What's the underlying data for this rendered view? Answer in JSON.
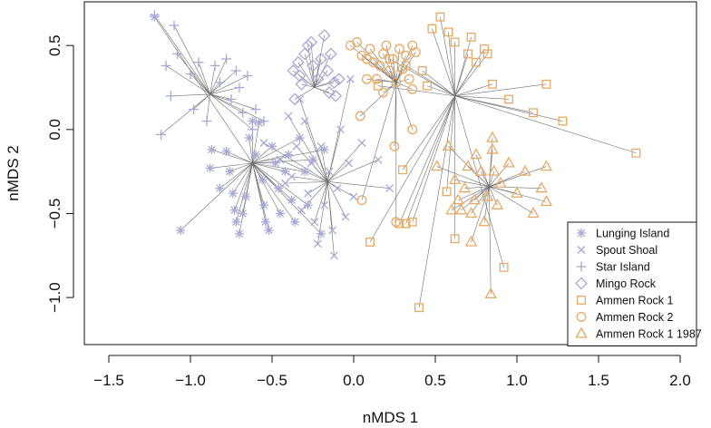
{
  "chart_data": {
    "type": "scatter",
    "title": "",
    "xlabel": "nMDS 1",
    "ylabel": "nMDS 2",
    "xlim": [
      -1.65,
      2.1
    ],
    "ylim": [
      -1.28,
      0.76
    ],
    "xticks": [
      -1.5,
      -1.0,
      -0.5,
      0.0,
      0.5,
      1.0,
      1.5,
      2.0
    ],
    "yticks": [
      -1.0,
      -0.5,
      0.0,
      0.5
    ],
    "xtick_labels": [
      "−1.5",
      "−1.0",
      "−0.5",
      "0.0",
      "0.5",
      "1.0",
      "1.5",
      "2.0"
    ],
    "ytick_labels": [
      "−1.0",
      "−0.5",
      "0.0",
      "0.5"
    ],
    "grid": false,
    "legend_position": "bottom-right",
    "spiders": true,
    "series": [
      {
        "name": "Lunging Island",
        "marker": "asterisk",
        "color": "#a9a9d6",
        "centroid": [
          -0.62,
          -0.2
        ],
        "points": [
          [
            -1.22,
            0.67
          ],
          [
            -0.87,
            -0.12
          ],
          [
            -0.88,
            -0.23
          ],
          [
            -0.82,
            -0.35
          ],
          [
            -1.06,
            -0.6
          ],
          [
            -0.78,
            -0.13
          ],
          [
            -0.76,
            -0.25
          ],
          [
            -0.74,
            -0.38
          ],
          [
            -0.73,
            -0.48
          ],
          [
            -0.72,
            -0.55
          ],
          [
            -0.7,
            -0.62
          ],
          [
            -0.68,
            -0.5
          ],
          [
            -0.66,
            -0.4
          ],
          [
            -0.64,
            -0.05
          ],
          [
            -0.62,
            0.05
          ],
          [
            -0.6,
            -0.15
          ],
          [
            -0.58,
            0.04
          ],
          [
            -0.56,
            -0.3
          ],
          [
            -0.55,
            -0.45
          ],
          [
            -0.54,
            -0.55
          ],
          [
            -0.52,
            -0.6
          ],
          [
            -0.5,
            -0.1
          ],
          [
            -0.48,
            -0.2
          ],
          [
            -0.46,
            -0.35
          ],
          [
            -0.45,
            -0.5
          ],
          [
            -0.42,
            -0.25
          ],
          [
            -0.4,
            -0.15
          ],
          [
            -0.38,
            -0.42
          ],
          [
            -0.36,
            -0.55
          ],
          [
            -0.33,
            -0.05
          ],
          [
            -0.3,
            -0.25
          ],
          [
            -0.28,
            -0.45
          ],
          [
            -0.25,
            -0.18
          ],
          [
            -0.2,
            -0.62
          ],
          [
            -0.18,
            -0.12
          ]
        ]
      },
      {
        "name": "Spout Shoal",
        "marker": "cross",
        "color": "#a9a9d6",
        "centroid": [
          -0.16,
          -0.31
        ],
        "points": [
          [
            -0.55,
            -0.08
          ],
          [
            -0.45,
            -0.18
          ],
          [
            -0.42,
            -0.32
          ],
          [
            -0.38,
            -0.28
          ],
          [
            -0.35,
            -0.1
          ],
          [
            -0.32,
            -0.48
          ],
          [
            -0.3,
            0.05
          ],
          [
            -0.28,
            -0.38
          ],
          [
            -0.26,
            -0.2
          ],
          [
            -0.24,
            -0.55
          ],
          [
            -0.22,
            -0.68
          ],
          [
            -0.2,
            -0.1
          ],
          [
            -0.18,
            -0.45
          ],
          [
            -0.15,
            -0.25
          ],
          [
            -0.13,
            -0.6
          ],
          [
            -0.1,
            -0.35
          ],
          [
            -0.08,
            0.0
          ],
          [
            -0.05,
            -0.52
          ],
          [
            -0.03,
            -0.2
          ],
          [
            0.0,
            -0.4
          ],
          [
            -0.02,
            0.3
          ],
          [
            0.15,
            -0.18
          ],
          [
            0.22,
            -0.35
          ],
          [
            0.05,
            -0.08
          ],
          [
            -0.33,
            0.18
          ],
          [
            -0.4,
            0.08
          ],
          [
            -0.12,
            -0.75
          ]
        ]
      },
      {
        "name": "Star Island",
        "marker": "plus",
        "color": "#a9a9d6",
        "centroid": [
          -0.88,
          0.21
        ],
        "points": [
          [
            -1.22,
            0.68
          ],
          [
            -1.1,
            0.62
          ],
          [
            -1.15,
            0.38
          ],
          [
            -1.08,
            0.45
          ],
          [
            -1.12,
            0.2
          ],
          [
            -1.0,
            0.33
          ],
          [
            -0.98,
            0.12
          ],
          [
            -0.95,
            0.4
          ],
          [
            -0.9,
            0.05
          ],
          [
            -0.85,
            0.38
          ],
          [
            -0.82,
            0.28
          ],
          [
            -0.78,
            0.42
          ],
          [
            -0.75,
            0.18
          ],
          [
            -0.72,
            0.35
          ],
          [
            -0.7,
            0.25
          ],
          [
            -0.68,
            0.1
          ],
          [
            -0.65,
            0.32
          ],
          [
            -0.62,
            0.0
          ],
          [
            -1.18,
            -0.03
          ],
          [
            -0.55,
            0.05
          ],
          [
            -0.6,
            0.12
          ]
        ]
      },
      {
        "name": "Mingo Rock",
        "marker": "diamond",
        "color": "#a9a9d6",
        "centroid": [
          -0.24,
          0.25
        ],
        "points": [
          [
            -0.34,
            0.4
          ],
          [
            -0.33,
            0.32
          ],
          [
            -0.3,
            0.45
          ],
          [
            -0.28,
            0.5
          ],
          [
            -0.26,
            0.52
          ],
          [
            -0.25,
            0.38
          ],
          [
            -0.22,
            0.3
          ],
          [
            -0.2,
            0.42
          ],
          [
            -0.18,
            0.56
          ],
          [
            -0.16,
            0.35
          ],
          [
            -0.15,
            0.22
          ],
          [
            -0.14,
            0.45
          ],
          [
            -0.12,
            0.28
          ],
          [
            -0.11,
            0.2
          ],
          [
            -0.37,
            0.35
          ],
          [
            -0.36,
            0.18
          ],
          [
            -0.09,
            0.3
          ],
          [
            -0.32,
            0.27
          ]
        ]
      },
      {
        "name": "Ammen Rock 1",
        "marker": "square",
        "color": "#e8a963",
        "centroid": [
          0.62,
          0.2
        ],
        "points": [
          [
            0.53,
            0.67
          ],
          [
            0.48,
            0.6
          ],
          [
            0.58,
            0.58
          ],
          [
            0.62,
            0.52
          ],
          [
            0.7,
            0.45
          ],
          [
            0.72,
            0.55
          ],
          [
            0.75,
            0.4
          ],
          [
            0.8,
            0.48
          ],
          [
            0.82,
            0.45
          ],
          [
            0.85,
            0.27
          ],
          [
            0.95,
            0.18
          ],
          [
            1.1,
            0.1
          ],
          [
            1.18,
            0.27
          ],
          [
            1.28,
            0.05
          ],
          [
            1.73,
            -0.14
          ],
          [
            0.15,
            0.26
          ],
          [
            0.22,
            0.42
          ],
          [
            0.32,
            0.38
          ],
          [
            0.42,
            0.35
          ],
          [
            0.45,
            0.26
          ],
          [
            0.3,
            -0.24
          ],
          [
            0.32,
            -0.56
          ],
          [
            0.36,
            -0.55
          ],
          [
            0.28,
            -0.56
          ],
          [
            0.1,
            -0.67
          ],
          [
            0.4,
            -1.06
          ],
          [
            0.57,
            -0.37
          ],
          [
            0.62,
            -0.65
          ],
          [
            0.92,
            -0.82
          ]
        ]
      },
      {
        "name": "Ammen Rock 2",
        "marker": "circle",
        "color": "#e8a963",
        "centroid": [
          0.26,
          0.28
        ],
        "points": [
          [
            -0.02,
            0.5
          ],
          [
            0.02,
            0.52
          ],
          [
            0.05,
            0.44
          ],
          [
            0.08,
            0.42
          ],
          [
            0.1,
            0.48
          ],
          [
            0.12,
            0.4
          ],
          [
            0.14,
            0.3
          ],
          [
            0.16,
            0.38
          ],
          [
            0.18,
            0.45
          ],
          [
            0.2,
            0.5
          ],
          [
            0.22,
            0.35
          ],
          [
            0.24,
            0.42
          ],
          [
            0.26,
            0.28
          ],
          [
            0.28,
            0.48
          ],
          [
            0.3,
            0.36
          ],
          [
            0.32,
            0.44
          ],
          [
            0.34,
            0.3
          ],
          [
            0.36,
            0.24
          ],
          [
            0.38,
            0.46
          ],
          [
            0.18,
            0.22
          ],
          [
            0.08,
            0.3
          ],
          [
            0.04,
            0.08
          ],
          [
            0.36,
            0.0
          ],
          [
            0.25,
            -0.1
          ],
          [
            0.26,
            -0.55
          ],
          [
            0.05,
            -0.42
          ],
          [
            0.36,
            0.5
          ]
        ]
      },
      {
        "name": "Ammen Rock 1 1987",
        "marker": "triangle",
        "color": "#e8a963",
        "centroid": [
          0.83,
          -0.34
        ],
        "points": [
          [
            0.51,
            -0.22
          ],
          [
            0.58,
            -0.1
          ],
          [
            0.62,
            -0.3
          ],
          [
            0.64,
            -0.42
          ],
          [
            0.66,
            -0.48
          ],
          [
            0.68,
            -0.35
          ],
          [
            0.7,
            -0.22
          ],
          [
            0.72,
            -0.5
          ],
          [
            0.74,
            -0.42
          ],
          [
            0.75,
            -0.15
          ],
          [
            0.78,
            -0.25
          ],
          [
            0.8,
            -0.55
          ],
          [
            0.82,
            -0.4
          ],
          [
            0.85,
            -0.12
          ],
          [
            0.86,
            -0.25
          ],
          [
            0.88,
            -0.45
          ],
          [
            0.9,
            -0.32
          ],
          [
            0.95,
            -0.2
          ],
          [
            1.0,
            -0.38
          ],
          [
            1.05,
            -0.25
          ],
          [
            1.1,
            -0.5
          ],
          [
            1.15,
            -0.35
          ],
          [
            1.18,
            -0.22
          ],
          [
            1.18,
            -0.43
          ],
          [
            0.72,
            -0.67
          ],
          [
            0.84,
            -0.98
          ],
          [
            0.85,
            -0.05
          ],
          [
            0.6,
            -0.48
          ]
        ]
      }
    ]
  }
}
